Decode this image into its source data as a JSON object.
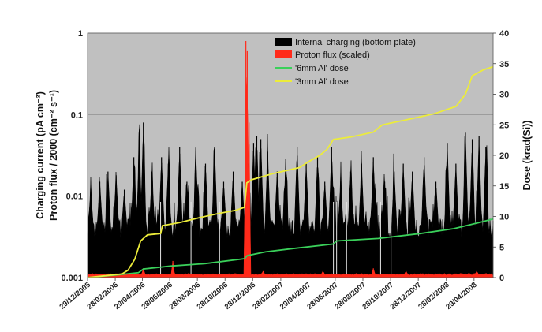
{
  "chart_data": {
    "type": "line",
    "y_left": {
      "label": "Charging current  (pA cm⁻²)",
      "label_2": "Proton flux / 2000  (cm⁻² s⁻¹)",
      "scale": "log",
      "range": [
        0.001,
        1
      ],
      "ticks": [
        "0.001",
        "0.01",
        "0.1",
        "1"
      ]
    },
    "y_right": {
      "label": "Dose (krad(Si))",
      "range": [
        0,
        40
      ],
      "ticks": [
        "0",
        "5",
        "10",
        "15",
        "20",
        "25",
        "30",
        "35",
        "40"
      ]
    },
    "x": {
      "range": [
        "2005-12-29",
        "2008-06-10"
      ],
      "tick_dates": [
        "2005-12-29",
        "2006-02-28",
        "2006-04-29",
        "2006-06-28",
        "2006-08-28",
        "2006-10-28",
        "2006-12-28",
        "2007-02-28",
        "2007-04-29",
        "2007-06-28",
        "2007-08-28",
        "2007-10-28",
        "2007-12-28",
        "2008-02-28",
        "2008-04-29"
      ],
      "tick_labels": [
        "29/12/2005",
        "28/02/2006",
        "29/04/2006",
        "28/06/2006",
        "28/08/2006",
        "28/10/2006",
        "28/12/2006",
        "28/02/2007",
        "29/04/2007",
        "28/06/2007",
        "28/08/2007",
        "28/10/2007",
        "28/12/2007",
        "28/02/2008",
        "29/04/2008"
      ]
    },
    "grid": "horizontal at 0.1 only",
    "legend_position": "top-right inside plot",
    "background": "#c0c0c0",
    "series": [
      {
        "name": "Internal charging (bottom plate)",
        "axis": "left",
        "style": "spikes",
        "color": "#000000",
        "baseline": 0.004,
        "peaks": [
          [
            "2006-01-05",
            0.012
          ],
          [
            "2006-01-25",
            0.015
          ],
          [
            "2006-02-12",
            0.02
          ],
          [
            "2006-03-02",
            0.018
          ],
          [
            "2006-03-20",
            0.012
          ],
          [
            "2006-04-10",
            0.03
          ],
          [
            "2006-04-22",
            0.05
          ],
          [
            "2006-05-01",
            0.08
          ],
          [
            "2006-05-20",
            0.02
          ],
          [
            "2006-06-10",
            0.03
          ],
          [
            "2006-06-25",
            0.025
          ],
          [
            "2006-07-20",
            0.04
          ],
          [
            "2006-08-05",
            0.015
          ],
          [
            "2006-08-25",
            0.03
          ],
          [
            "2006-09-15",
            0.025
          ],
          [
            "2006-10-05",
            0.04
          ],
          [
            "2006-10-25",
            0.015
          ],
          [
            "2006-11-15",
            0.02
          ],
          [
            "2006-12-05",
            0.015
          ],
          [
            "2006-12-18",
            0.025
          ],
          [
            "2006-12-30",
            0.045
          ],
          [
            "2007-01-06",
            0.055
          ],
          [
            "2007-01-15",
            0.05
          ],
          [
            "2007-01-30",
            0.035
          ],
          [
            "2007-02-20",
            0.02
          ],
          [
            "2007-03-10",
            0.018
          ],
          [
            "2007-04-05",
            0.04
          ],
          [
            "2007-04-25",
            0.025
          ],
          [
            "2007-05-20",
            0.03
          ],
          [
            "2007-06-05",
            0.015
          ],
          [
            "2007-06-20",
            0.04
          ],
          [
            "2007-07-10",
            0.015
          ],
          [
            "2007-08-01",
            0.02
          ],
          [
            "2007-08-25",
            0.025
          ],
          [
            "2007-09-20",
            0.03
          ],
          [
            "2007-10-15",
            0.015
          ],
          [
            "2007-11-05",
            0.02
          ],
          [
            "2007-11-25",
            0.025
          ],
          [
            "2007-12-15",
            0.02
          ],
          [
            "2008-01-10",
            0.03
          ],
          [
            "2008-02-05",
            0.015
          ],
          [
            "2008-03-01",
            0.045
          ],
          [
            "2008-03-20",
            0.025
          ],
          [
            "2008-04-10",
            0.06
          ],
          [
            "2008-04-25",
            0.05
          ],
          [
            "2008-05-10",
            0.055
          ],
          [
            "2008-05-25",
            0.04
          ]
        ],
        "gaps": [
          "2006-06-08",
          "2006-08-14",
          "2006-10-16",
          "2007-06-24",
          "2007-07-01",
          "2007-07-23",
          "2007-10-06",
          "2007-10-29"
        ]
      },
      {
        "name": "Proton flux (scaled)",
        "axis": "left",
        "style": "spikes",
        "color": "#ff2a1a",
        "baseline": 0.0011,
        "peaks": [
          [
            "2006-05-01",
            0.0013
          ],
          [
            "2006-07-05",
            0.0016
          ],
          [
            "2006-12-13",
            0.8
          ],
          [
            "2006-12-16",
            0.6
          ],
          [
            "2006-12-20",
            0.08
          ],
          [
            "2007-01-20",
            0.0012
          ],
          [
            "2007-06-01",
            0.0012
          ],
          [
            "2007-09-20",
            0.0013
          ],
          [
            "2007-12-01",
            0.0012
          ],
          [
            "2008-05-05",
            0.0012
          ]
        ]
      },
      {
        "name": "'6mm Al' dose",
        "axis": "right",
        "color": "#3ad05a",
        "points": [
          [
            "2005-12-29",
            0
          ],
          [
            "2006-02-28",
            0.4
          ],
          [
            "2006-04-20",
            0.8
          ],
          [
            "2006-05-01",
            1.4
          ],
          [
            "2006-07-01",
            1.9
          ],
          [
            "2006-09-15",
            2.3
          ],
          [
            "2006-12-10",
            3.1
          ],
          [
            "2006-12-16",
            3.6
          ],
          [
            "2007-01-25",
            4.2
          ],
          [
            "2007-04-01",
            4.8
          ],
          [
            "2007-06-24",
            5.5
          ],
          [
            "2007-07-01",
            6.0
          ],
          [
            "2007-10-01",
            6.4
          ],
          [
            "2008-01-01",
            7.2
          ],
          [
            "2008-03-15",
            8.0
          ],
          [
            "2008-05-10",
            9.0
          ],
          [
            "2008-06-10",
            9.6
          ]
        ]
      },
      {
        "name": "'3mm Al' dose",
        "axis": "right",
        "color": "#ecec3a",
        "points": [
          [
            "2005-12-29",
            0
          ],
          [
            "2006-03-15",
            0.6
          ],
          [
            "2006-03-28",
            1.2
          ],
          [
            "2006-04-12",
            3.0
          ],
          [
            "2006-04-25",
            6.0
          ],
          [
            "2006-05-10",
            7.0
          ],
          [
            "2006-06-08",
            7.2
          ],
          [
            "2006-06-12",
            8.5
          ],
          [
            "2006-07-20",
            9.0
          ],
          [
            "2006-09-01",
            9.8
          ],
          [
            "2006-10-15",
            10.5
          ],
          [
            "2006-11-20",
            11.0
          ],
          [
            "2006-12-10",
            11.5
          ],
          [
            "2006-12-15",
            15.5
          ],
          [
            "2006-12-25",
            16.0
          ],
          [
            "2007-02-10",
            17.0
          ],
          [
            "2007-04-10",
            18.0
          ],
          [
            "2007-05-01",
            19.0
          ],
          [
            "2007-05-25",
            20.0
          ],
          [
            "2007-06-10",
            21.0
          ],
          [
            "2007-06-24",
            22.6
          ],
          [
            "2007-08-01",
            23.0
          ],
          [
            "2007-09-20",
            23.8
          ],
          [
            "2007-10-10",
            25.0
          ],
          [
            "2007-12-01",
            25.8
          ],
          [
            "2008-02-01",
            26.8
          ],
          [
            "2008-03-20",
            28.0
          ],
          [
            "2008-04-10",
            30.0
          ],
          [
            "2008-04-25",
            33.0
          ],
          [
            "2008-05-20",
            34.0
          ],
          [
            "2008-06-10",
            34.5
          ]
        ]
      }
    ]
  }
}
